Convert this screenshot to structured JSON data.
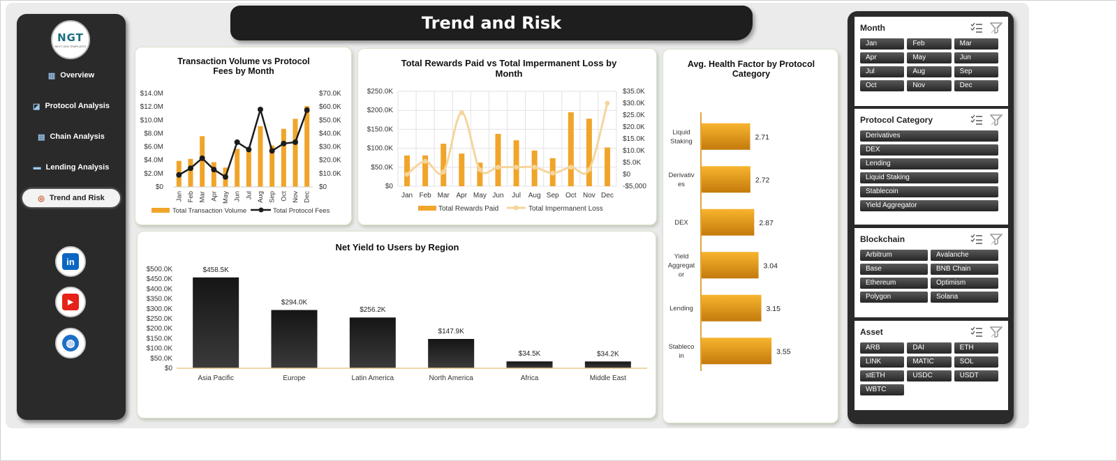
{
  "title": "Trend and Risk",
  "logo": {
    "text": "NGT",
    "subtext": "NEXT GEN TEMPLATES"
  },
  "nav": [
    {
      "label": "Overview",
      "icon": "bar-chart-icon"
    },
    {
      "label": "Protocol Analysis",
      "icon": "line-chart-icon"
    },
    {
      "label": "Chain Analysis",
      "icon": "clipboard-icon"
    },
    {
      "label": "Lending Analysis",
      "icon": "money-icon"
    },
    {
      "label": "Trend and Risk",
      "icon": "risk-icon",
      "active": true
    }
  ],
  "social": [
    {
      "name": "linkedin-icon",
      "glyph": "in",
      "color": "#0a66c2"
    },
    {
      "name": "youtube-icon",
      "glyph": "▶",
      "color": "#e62117"
    },
    {
      "name": "web-icon",
      "glyph": "◍",
      "color": "#1f6fc7"
    }
  ],
  "colors": {
    "accent": "#f0a52a",
    "dark": "#1c1c1c",
    "loss_line": "#f5d59b"
  },
  "chart_data": [
    {
      "id": "volume-fees",
      "type": "bar+line",
      "title": "Transaction Volume vs Protocol Fees by Month",
      "categories": [
        "Jan",
        "Feb",
        "Mar",
        "Apr",
        "May",
        "Jun",
        "Jul",
        "Aug",
        "Sep",
        "Oct",
        "Nov",
        "Dec"
      ],
      "series": [
        {
          "name": "Total Transaction Volume",
          "type": "bar",
          "axis": "left",
          "values": [
            3.9,
            4.2,
            7.6,
            3.7,
            2.9,
            5.7,
            5.9,
            9.1,
            6.2,
            8.7,
            10.2,
            12.1
          ]
        },
        {
          "name": "Total Protocol Fees",
          "type": "line",
          "axis": "right",
          "values": [
            9,
            14,
            21.5,
            13,
            7.5,
            33.5,
            28,
            58,
            27,
            32.5,
            33.5,
            57.5
          ]
        }
      ],
      "y_left": {
        "ticks": [
          "$0",
          "$2.0M",
          "$4.0M",
          "$6.0M",
          "$8.0M",
          "$10.0M",
          "$12.0M",
          "$14.0M"
        ],
        "unit": "$M",
        "range": [
          0,
          14
        ]
      },
      "y_right": {
        "ticks": [
          "$0",
          "$10.0K",
          "$20.0K",
          "$30.0K",
          "$40.0K",
          "$50.0K",
          "$60.0K",
          "$70.0K"
        ],
        "unit": "$K",
        "range": [
          0,
          70
        ]
      },
      "legend": "bottom"
    },
    {
      "id": "rewards-loss",
      "type": "bar+line",
      "title": "Total Rewards Paid vs Total Impermanent Loss by Month",
      "categories": [
        "Jan",
        "Feb",
        "Mar",
        "Apr",
        "May",
        "Jun",
        "Jul",
        "Aug",
        "Sep",
        "Oct",
        "Nov",
        "Dec"
      ],
      "series": [
        {
          "name": "Total Rewards Paid",
          "type": "bar",
          "axis": "left",
          "values": [
            81,
            81,
            112,
            86,
            62,
            138,
            121,
            94,
            74,
            195,
            178,
            102
          ]
        },
        {
          "name": "Total Impermanent Loss",
          "type": "line",
          "axis": "right",
          "values": [
            0,
            5.5,
            1,
            26,
            2,
            3,
            3,
            3,
            0.5,
            3,
            2,
            30
          ]
        }
      ],
      "y_left": {
        "ticks": [
          "$0",
          "$50.0K",
          "$100.0K",
          "$150.0K",
          "$200.0K",
          "$250.0K"
        ],
        "unit": "$K",
        "range": [
          0,
          250
        ]
      },
      "y_right": {
        "ticks": [
          "-$5,000",
          "$0",
          "$5.0K",
          "$10.0K",
          "$15.0K",
          "$20.0K",
          "$25.0K",
          "$30.0K",
          "$35.0K"
        ],
        "unit": "$K",
        "range": [
          -5,
          35
        ]
      },
      "grid": true,
      "legend": "bottom"
    },
    {
      "id": "health-factor",
      "type": "bar",
      "orientation": "horizontal",
      "title": "Avg. Health Factor by Protocol Category",
      "categories": [
        "Liquid Staking",
        "Derivatives",
        "DEX",
        "Yield Aggregator",
        "Lending",
        "Stablecoin"
      ],
      "category_lines": [
        [
          "Liquid",
          "Staking"
        ],
        [
          "Derivativ",
          "es"
        ],
        [
          "DEX"
        ],
        [
          "Yield",
          "Aggregat",
          "or"
        ],
        [
          "Lending"
        ],
        [
          "Stableco",
          "in"
        ]
      ],
      "values": [
        2.71,
        2.72,
        2.87,
        3.04,
        3.15,
        3.55
      ],
      "labels": [
        "2.71",
        "2.72",
        "2.87",
        "3.04",
        "3.15",
        "3.55"
      ]
    },
    {
      "id": "net-yield",
      "type": "bar",
      "title": "Net Yield to Users by Region",
      "categories": [
        "Asia Pacific",
        "Europe",
        "Latin America",
        "North America",
        "Africa",
        "Middle East"
      ],
      "values": [
        458.5,
        294.0,
        256.2,
        147.9,
        34.5,
        34.2
      ],
      "labels": [
        "$458.5K",
        "$294.0K",
        "$256.2K",
        "$147.9K",
        "$34.5K",
        "$34.2K"
      ],
      "y": {
        "ticks": [
          "$0",
          "$50.0K",
          "$100.0K",
          "$150.0K",
          "$200.0K",
          "$250.0K",
          "$300.0K",
          "$350.0K",
          "$400.0K",
          "$450.0K",
          "$500.0K"
        ],
        "unit": "$K",
        "range": [
          0,
          500
        ]
      }
    }
  ],
  "slicers": [
    {
      "title": "Month",
      "columns": 3,
      "items": [
        "Jan",
        "Feb",
        "Mar",
        "Apr",
        "May",
        "Jun",
        "Jul",
        "Aug",
        "Sep",
        "Oct",
        "Nov",
        "Dec"
      ]
    },
    {
      "title": "Protocol Category",
      "columns": 1,
      "items": [
        "Derivatives",
        "DEX",
        "Lending",
        "Liquid Staking",
        "Stablecoin",
        "Yield Aggregator"
      ]
    },
    {
      "title": "Blockchain",
      "columns": 2,
      "items": [
        "Arbitrum",
        "Avalanche",
        "Base",
        "BNB Chain",
        "Ethereum",
        "Optimism",
        "Polygon",
        "Solana"
      ]
    },
    {
      "title": "Asset",
      "columns": 3,
      "items": [
        "ARB",
        "DAI",
        "ETH",
        "LINK",
        "MATIC",
        "SOL",
        "stETH",
        "USDC",
        "USDT",
        "WBTC"
      ]
    }
  ]
}
